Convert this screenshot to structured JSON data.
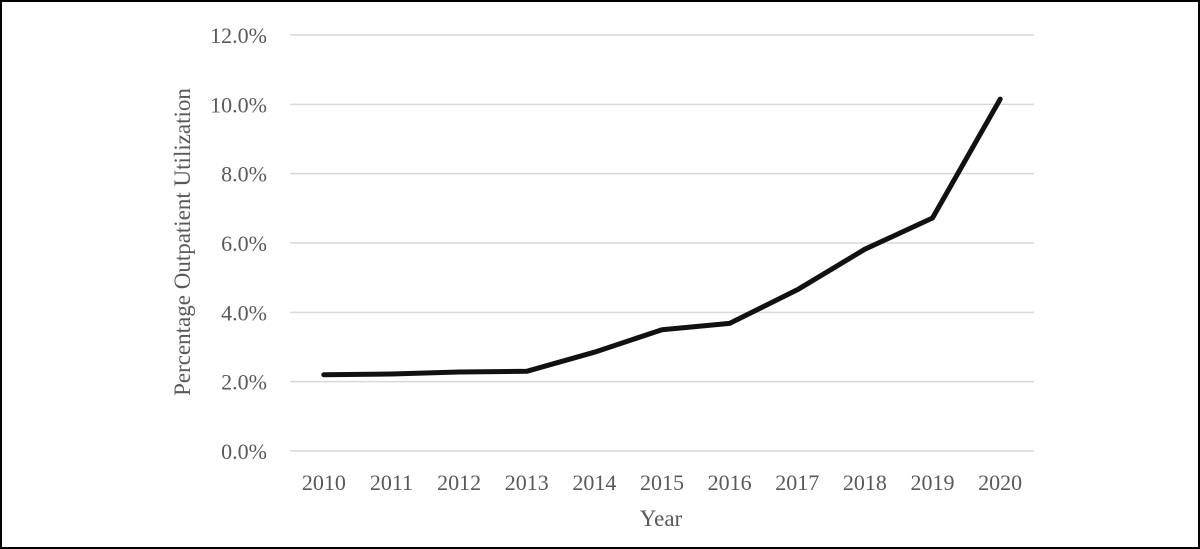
{
  "chart_data": {
    "type": "line",
    "title": "",
    "xlabel": "Year",
    "ylabel": "Percentage Outpatient Utilization",
    "categories": [
      "2010",
      "2011",
      "2012",
      "2013",
      "2014",
      "2015",
      "2016",
      "2017",
      "2018",
      "2019",
      "2020"
    ],
    "series": [
      {
        "values": [
          2.2,
          2.22,
          2.28,
          2.3,
          2.85,
          3.5,
          3.68,
          4.65,
          5.82,
          6.72,
          10.15
        ]
      }
    ],
    "y_ticks": [
      "0.0%",
      "2.0%",
      "4.0%",
      "6.0%",
      "8.0%",
      "10.0%",
      "12.0%"
    ],
    "y_tick_values": [
      0,
      2,
      4,
      6,
      8,
      10,
      12
    ],
    "ylim": [
      0,
      12
    ],
    "grid": true,
    "line_color": "#111111",
    "grid_color": "#d9d9d9"
  }
}
